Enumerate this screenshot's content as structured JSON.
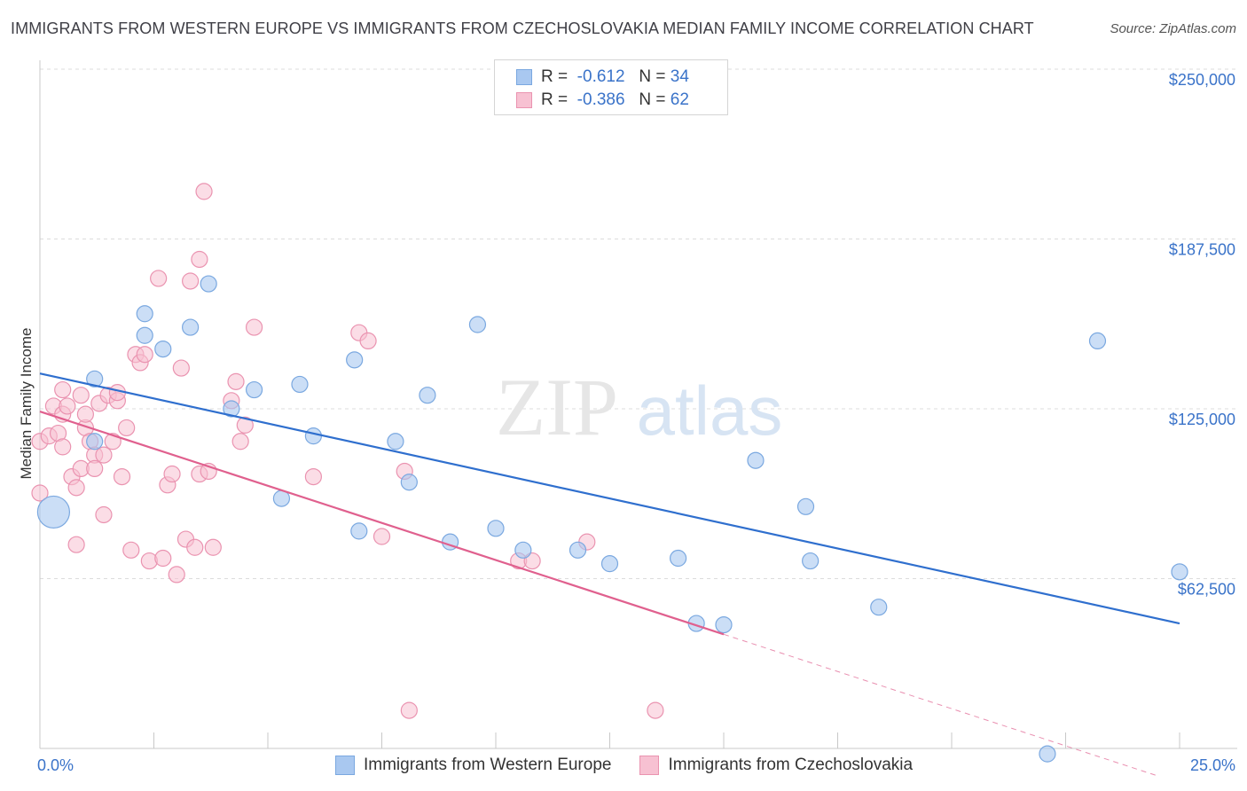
{
  "title": "IMMIGRANTS FROM WESTERN EUROPE VS IMMIGRANTS FROM CZECHOSLOVAKIA MEDIAN FAMILY INCOME CORRELATION CHART",
  "source": "Source: ZipAtlas.com",
  "watermark": {
    "zip": "ZIP",
    "atlas": "atlas"
  },
  "legend_top": [
    {
      "r_label": "R =",
      "r_value": "-0.612",
      "n_label": "N =",
      "n_value": "34",
      "color": "#a9c8f0"
    },
    {
      "r_label": "R =",
      "r_value": "-0.386",
      "n_label": "N =",
      "n_value": "62",
      "color": "#f5b8cb"
    }
  ],
  "colors": {
    "blue_fill": "#a9c8f0",
    "blue_stroke": "#7aa8e0",
    "blue_line": "#2f6fce",
    "pink_fill": "#f7c1d2",
    "pink_stroke": "#ea93b0",
    "pink_line": "#e0608e",
    "tick_text": "#3a73c9"
  },
  "chart_data": {
    "type": "scatter",
    "ylabel": "Median Family Income",
    "xlim": [
      0,
      25
    ],
    "ylim": [
      0,
      250000
    ],
    "y_ticks": [
      {
        "value": 62500,
        "label": "$62,500"
      },
      {
        "value": 125000,
        "label": "$125,000"
      },
      {
        "value": 187500,
        "label": "$187,500"
      },
      {
        "value": 250000,
        "label": "$250,000"
      }
    ],
    "x_tick_labels": [
      {
        "value": 0,
        "label": "0.0%"
      },
      {
        "value": 25,
        "label": "25.0%"
      }
    ],
    "series": [
      {
        "name": "Immigrants from Western Europe",
        "trend": {
          "x": [
            0,
            25
          ],
          "y": [
            138000,
            46000
          ]
        },
        "points": [
          {
            "x": 0.3,
            "y": 87000,
            "big": true
          },
          {
            "x": 1.2,
            "y": 113000
          },
          {
            "x": 1.2,
            "y": 136000
          },
          {
            "x": 2.3,
            "y": 152000
          },
          {
            "x": 2.3,
            "y": 160000
          },
          {
            "x": 2.7,
            "y": 147000
          },
          {
            "x": 3.3,
            "y": 155000
          },
          {
            "x": 3.7,
            "y": 171000
          },
          {
            "x": 4.2,
            "y": 125000
          },
          {
            "x": 4.7,
            "y": 132000
          },
          {
            "x": 5.3,
            "y": 92000
          },
          {
            "x": 5.7,
            "y": 134000
          },
          {
            "x": 6.0,
            "y": 115000
          },
          {
            "x": 6.9,
            "y": 143000
          },
          {
            "x": 7.0,
            "y": 80000
          },
          {
            "x": 7.8,
            "y": 113000
          },
          {
            "x": 8.1,
            "y": 98000
          },
          {
            "x": 8.5,
            "y": 130000
          },
          {
            "x": 9.0,
            "y": 76000
          },
          {
            "x": 9.6,
            "y": 156000
          },
          {
            "x": 10.0,
            "y": 81000
          },
          {
            "x": 10.6,
            "y": 73000
          },
          {
            "x": 11.8,
            "y": 73000
          },
          {
            "x": 12.5,
            "y": 68000
          },
          {
            "x": 14.0,
            "y": 70000
          },
          {
            "x": 14.4,
            "y": 46000
          },
          {
            "x": 15.0,
            "y": 45500
          },
          {
            "x": 15.7,
            "y": 106000
          },
          {
            "x": 16.8,
            "y": 89000
          },
          {
            "x": 16.9,
            "y": 69000
          },
          {
            "x": 18.4,
            "y": 52000
          },
          {
            "x": 22.1,
            "y": -2000
          },
          {
            "x": 23.2,
            "y": 150000
          },
          {
            "x": 25.0,
            "y": 65000
          }
        ]
      },
      {
        "name": "Immigrants from Czechoslovakia",
        "trend": {
          "x": [
            0,
            15
          ],
          "y": [
            124000,
            42000
          ]
        },
        "trend_dashed": {
          "x": [
            15,
            24.5
          ],
          "y": [
            42000,
            -10000
          ]
        },
        "points": [
          {
            "x": 0.0,
            "y": 113000
          },
          {
            "x": 0.0,
            "y": 94000
          },
          {
            "x": 0.2,
            "y": 115000
          },
          {
            "x": 0.3,
            "y": 126000
          },
          {
            "x": 0.4,
            "y": 116000
          },
          {
            "x": 0.5,
            "y": 123000
          },
          {
            "x": 0.5,
            "y": 111000
          },
          {
            "x": 0.6,
            "y": 126000
          },
          {
            "x": 0.5,
            "y": 132000
          },
          {
            "x": 0.7,
            "y": 100000
          },
          {
            "x": 0.8,
            "y": 96000
          },
          {
            "x": 0.8,
            "y": 75000
          },
          {
            "x": 0.9,
            "y": 130000
          },
          {
            "x": 0.9,
            "y": 103000
          },
          {
            "x": 1.0,
            "y": 118000
          },
          {
            "x": 1.0,
            "y": 123000
          },
          {
            "x": 1.1,
            "y": 113000
          },
          {
            "x": 1.2,
            "y": 108000
          },
          {
            "x": 1.2,
            "y": 103000
          },
          {
            "x": 1.3,
            "y": 127000
          },
          {
            "x": 1.4,
            "y": 108000
          },
          {
            "x": 1.4,
            "y": 86000
          },
          {
            "x": 1.5,
            "y": 130000
          },
          {
            "x": 1.6,
            "y": 113000
          },
          {
            "x": 1.7,
            "y": 128000
          },
          {
            "x": 1.7,
            "y": 131000
          },
          {
            "x": 1.8,
            "y": 100000
          },
          {
            "x": 1.9,
            "y": 118000
          },
          {
            "x": 2.0,
            "y": 73000
          },
          {
            "x": 2.1,
            "y": 145000
          },
          {
            "x": 2.2,
            "y": 142000
          },
          {
            "x": 2.3,
            "y": 145000
          },
          {
            "x": 2.4,
            "y": 69000
          },
          {
            "x": 2.6,
            "y": 173000
          },
          {
            "x": 2.7,
            "y": 70000
          },
          {
            "x": 2.8,
            "y": 97000
          },
          {
            "x": 2.9,
            "y": 101000
          },
          {
            "x": 3.0,
            "y": 64000
          },
          {
            "x": 3.1,
            "y": 140000
          },
          {
            "x": 3.3,
            "y": 172000
          },
          {
            "x": 3.2,
            "y": 77000
          },
          {
            "x": 3.4,
            "y": 74000
          },
          {
            "x": 3.5,
            "y": 101000
          },
          {
            "x": 3.5,
            "y": 180000
          },
          {
            "x": 3.6,
            "y": 205000
          },
          {
            "x": 3.7,
            "y": 102000
          },
          {
            "x": 3.8,
            "y": 74000
          },
          {
            "x": 4.2,
            "y": 128000
          },
          {
            "x": 4.3,
            "y": 135000
          },
          {
            "x": 4.4,
            "y": 113000
          },
          {
            "x": 4.5,
            "y": 119000
          },
          {
            "x": 4.7,
            "y": 155000
          },
          {
            "x": 6.0,
            "y": 100000
          },
          {
            "x": 7.0,
            "y": 153000
          },
          {
            "x": 7.2,
            "y": 150000
          },
          {
            "x": 7.5,
            "y": 78000
          },
          {
            "x": 8.0,
            "y": 102000
          },
          {
            "x": 8.1,
            "y": 14000
          },
          {
            "x": 10.5,
            "y": 69000
          },
          {
            "x": 10.8,
            "y": 69000
          },
          {
            "x": 12.0,
            "y": 76000
          },
          {
            "x": 13.5,
            "y": 14000
          }
        ]
      }
    ]
  }
}
